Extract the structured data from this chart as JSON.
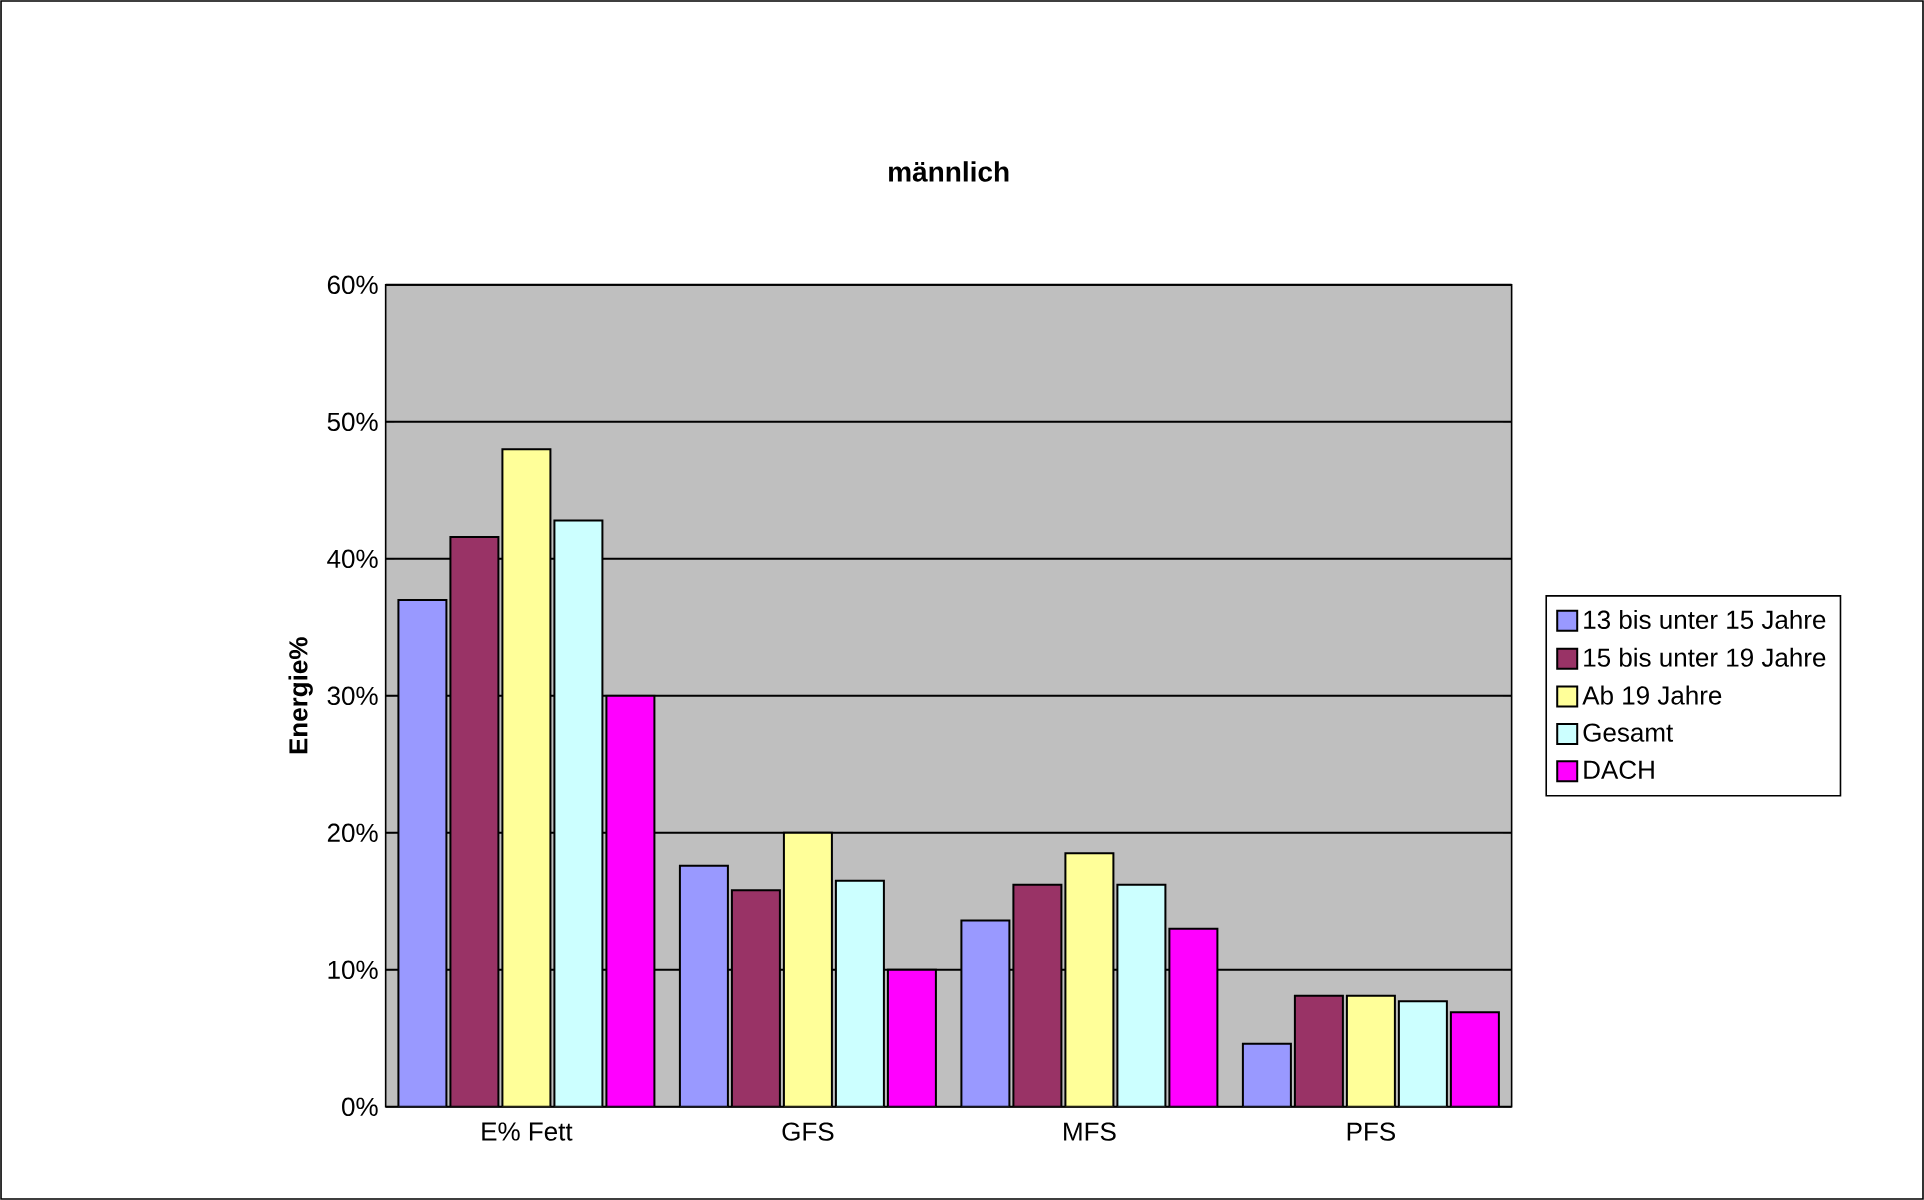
{
  "chart_data": {
    "type": "bar",
    "title": "männlich",
    "ylabel": "Energie%",
    "categories": [
      "E% Fett",
      "GFS",
      "MFS",
      "PFS"
    ],
    "series": [
      {
        "name": "13 bis unter 15 Jahre",
        "color": "#9999ff",
        "values": [
          37.0,
          17.6,
          13.6,
          4.6
        ]
      },
      {
        "name": "15 bis unter 19 Jahre",
        "color": "#993366",
        "values": [
          41.6,
          15.8,
          16.2,
          8.1
        ]
      },
      {
        "name": "Ab 19 Jahre",
        "color": "#ffff99",
        "values": [
          48.0,
          20.0,
          18.5,
          8.1
        ]
      },
      {
        "name": "Gesamt",
        "color": "#ccffff",
        "values": [
          42.8,
          16.5,
          16.2,
          7.7
        ]
      },
      {
        "name": "DACH",
        "color": "#ff00ff",
        "values": [
          30.0,
          10.0,
          13.0,
          6.9
        ]
      }
    ],
    "ylim": [
      0,
      60
    ],
    "yticks": [
      {
        "value": 0,
        "label": "0%"
      },
      {
        "value": 10,
        "label": "10%"
      },
      {
        "value": 20,
        "label": "20%"
      },
      {
        "value": 30,
        "label": "30%"
      },
      {
        "value": 40,
        "label": "40%"
      },
      {
        "value": 50,
        "label": "50%"
      },
      {
        "value": 60,
        "label": "60%"
      }
    ],
    "grid": "y",
    "legend": "right"
  }
}
